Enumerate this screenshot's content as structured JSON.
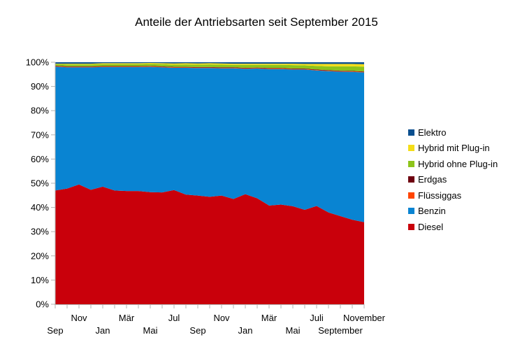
{
  "chart_data": {
    "type": "area",
    "stacked": true,
    "normalized_percent": true,
    "title": "Anteile der Antriebsarten seit September 2015",
    "xlabel": "",
    "ylabel": "",
    "ylim": [
      0,
      100
    ],
    "y_ticks": [
      "0%",
      "10%",
      "20%",
      "30%",
      "40%",
      "50%",
      "60%",
      "70%",
      "80%",
      "90%",
      "100%"
    ],
    "x_labels": [
      {
        "index": 0,
        "label": "Sep",
        "row": 2
      },
      {
        "index": 2,
        "label": "Nov",
        "row": 1
      },
      {
        "index": 4,
        "label": "Jan",
        "row": 2
      },
      {
        "index": 6,
        "label": "Mär",
        "row": 1
      },
      {
        "index": 8,
        "label": "Mai",
        "row": 2
      },
      {
        "index": 10,
        "label": "Jul",
        "row": 1
      },
      {
        "index": 12,
        "label": "Sep",
        "row": 2
      },
      {
        "index": 14,
        "label": "Nov",
        "row": 1
      },
      {
        "index": 16,
        "label": "Jan",
        "row": 2
      },
      {
        "index": 18,
        "label": "Mär",
        "row": 1
      },
      {
        "index": 20,
        "label": "Mai",
        "row": 2
      },
      {
        "index": 22,
        "label": "Juli",
        "row": 1
      },
      {
        "index": 24,
        "label": "September",
        "row": 2
      },
      {
        "index": 26,
        "label": "November",
        "row": 1
      }
    ],
    "x_count": 27,
    "series": [
      {
        "name": "Diesel",
        "color": "#c9000b",
        "values": [
          47.0,
          47.8,
          49.5,
          47.3,
          48.6,
          47.0,
          46.8,
          46.8,
          46.3,
          46.2,
          47.2,
          45.3,
          44.9,
          44.4,
          44.9,
          43.5,
          45.5,
          43.8,
          40.8,
          41.2,
          40.5,
          39.0,
          40.6,
          38.0,
          36.5,
          35.0,
          34.0
        ]
      },
      {
        "name": "Benzin",
        "color": "#0984d2",
        "values": [
          51.2,
          50.1,
          48.4,
          50.6,
          49.4,
          51.0,
          51.2,
          51.2,
          51.8,
          51.7,
          50.5,
          52.4,
          52.7,
          53.2,
          52.6,
          54.0,
          51.8,
          53.6,
          56.4,
          56.0,
          56.5,
          58.0,
          56.0,
          58.5,
          59.8,
          61.2,
          62.0
        ]
      },
      {
        "name": "Flüssiggas",
        "color": "#ff4500",
        "values": [
          0.2,
          0.2,
          0.2,
          0.2,
          0.2,
          0.2,
          0.2,
          0.2,
          0.2,
          0.2,
          0.2,
          0.2,
          0.2,
          0.2,
          0.2,
          0.2,
          0.2,
          0.2,
          0.2,
          0.2,
          0.2,
          0.2,
          0.2,
          0.2,
          0.2,
          0.2,
          0.2
        ]
      },
      {
        "name": "Erdgas",
        "color": "#6e0010",
        "values": [
          0.2,
          0.2,
          0.2,
          0.2,
          0.2,
          0.2,
          0.2,
          0.2,
          0.2,
          0.2,
          0.2,
          0.2,
          0.2,
          0.2,
          0.2,
          0.2,
          0.2,
          0.2,
          0.2,
          0.2,
          0.2,
          0.2,
          0.2,
          0.2,
          0.2,
          0.2,
          0.2
        ]
      },
      {
        "name": "Hybrid ohne Plug-in",
        "color": "#8dc41b",
        "values": [
          0.6,
          0.8,
          0.8,
          0.8,
          0.8,
          0.8,
          0.8,
          0.8,
          0.8,
          0.9,
          0.9,
          1.0,
          1.0,
          1.1,
          1.1,
          1.0,
          1.2,
          1.1,
          1.3,
          1.3,
          1.4,
          1.3,
          1.5,
          1.6,
          1.8,
          1.9,
          2.0
        ]
      },
      {
        "name": "Hybrid mit Plug-in",
        "color": "#f4dd18",
        "values": [
          0.2,
          0.3,
          0.3,
          0.3,
          0.4,
          0.4,
          0.4,
          0.4,
          0.4,
          0.4,
          0.5,
          0.5,
          0.5,
          0.5,
          0.5,
          0.5,
          0.5,
          0.5,
          0.5,
          0.5,
          0.6,
          0.6,
          0.8,
          1.0,
          1.0,
          1.0,
          1.0
        ]
      },
      {
        "name": "Elektro",
        "color": "#0a4f8f",
        "values": [
          0.6,
          0.6,
          0.6,
          0.6,
          0.4,
          0.4,
          0.4,
          0.4,
          0.3,
          0.4,
          0.5,
          0.4,
          0.5,
          0.4,
          0.5,
          0.6,
          0.6,
          0.6,
          0.6,
          0.6,
          0.6,
          0.7,
          0.7,
          0.7,
          0.7,
          0.7,
          0.8
        ]
      }
    ],
    "legend_order": [
      "Elektro",
      "Hybrid mit Plug-in",
      "Hybrid ohne Plug-in",
      "Erdgas",
      "Flüssiggas",
      "Benzin",
      "Diesel"
    ],
    "legend_position": "right",
    "grid": false
  }
}
